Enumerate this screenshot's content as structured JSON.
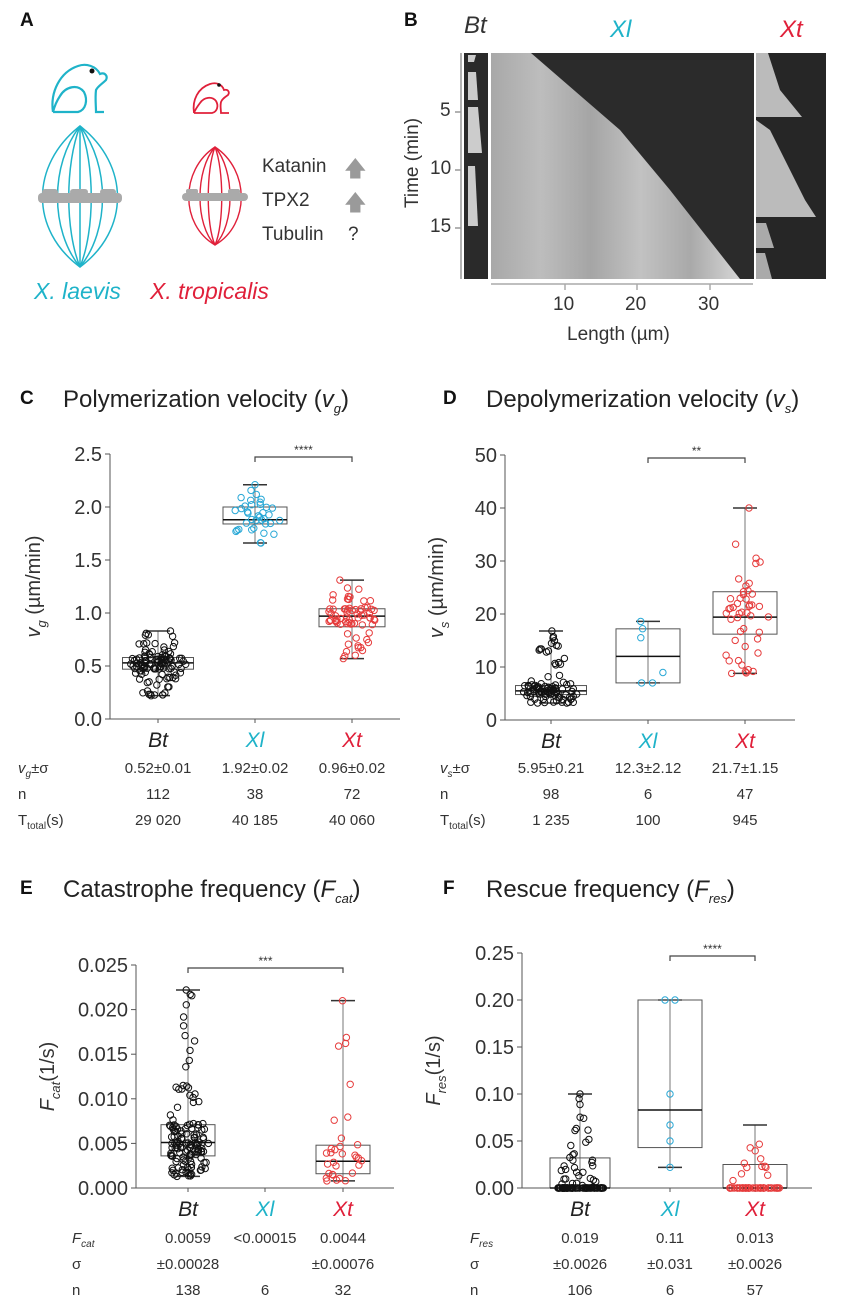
{
  "colors": {
    "Bt": "#111111",
    "Xl": "#29a8d6",
    "Xt": "#e63c3c",
    "Xl_text": "#1fb3c9",
    "Xt_text": "#e0203a",
    "arrow": "#9a9a9a"
  },
  "panelA": {
    "letter": "A",
    "species": [
      {
        "label": "X. laevis",
        "color_key": "Xl_text"
      },
      {
        "label": "X. tropicalis",
        "color_key": "Xt_text"
      }
    ],
    "factors": [
      {
        "name": "Katanin",
        "indicator": "up-arrow"
      },
      {
        "name": "TPX2",
        "indicator": "up-arrow"
      },
      {
        "name": "Tubulin",
        "indicator": "?"
      }
    ]
  },
  "panelB": {
    "letter": "B",
    "kymographs": [
      {
        "label": "Bt"
      },
      {
        "label": "Xl"
      },
      {
        "label": "Xt"
      }
    ],
    "y_axis": {
      "label": "Time (min)",
      "ticks": [
        "5",
        "10",
        "15"
      ]
    },
    "x_axis": {
      "label": "Length (µm)",
      "ticks": [
        "10",
        "20",
        "30"
      ]
    }
  },
  "chart_data": [
    {
      "id": "C",
      "type": "box",
      "letter": "C",
      "title": "Polymerization velocity (v",
      "title_sub": "g",
      "ylabel": "v",
      "ylabel_sub": "g",
      "ylabel_rest": " (µm/min)",
      "ylim": [
        0,
        2.5
      ],
      "yticks": [
        "0.0",
        "0.5",
        "1.0",
        "1.5",
        "2.0",
        "2.5"
      ],
      "categories": [
        "Bt",
        "Xl",
        "Xt"
      ],
      "boxes": [
        {
          "min": 0.22,
          "q1": 0.47,
          "median": 0.53,
          "q3": 0.58,
          "max": 0.83
        },
        {
          "min": 1.66,
          "q1": 1.84,
          "median": 1.88,
          "q3": 2.0,
          "max": 2.21
        },
        {
          "min": 0.57,
          "q1": 0.87,
          "median": 0.97,
          "q3": 1.04,
          "max": 1.31
        }
      ],
      "n_points": [
        112,
        38,
        72
      ],
      "significance": {
        "from": "Xl",
        "to": "Xt",
        "label": "****"
      },
      "table": {
        "rows": [
          {
            "label": "v",
            "label_sub": "g",
            "label_rest": "±σ",
            "values": [
              "0.52±0.01",
              "1.92±0.02",
              "0.96±0.02"
            ]
          },
          {
            "label": "n",
            "values": [
              "112",
              "38",
              "72"
            ]
          },
          {
            "label": "T",
            "label_sub": "total",
            "label_rest": "(s)",
            "values": [
              "29 020",
              "40 185",
              "40 060"
            ]
          }
        ]
      }
    },
    {
      "id": "D",
      "type": "box",
      "letter": "D",
      "title": "Depolymerization velocity (v",
      "title_sub": "s",
      "ylabel": "v",
      "ylabel_sub": "s",
      "ylabel_rest": " (µm/min)",
      "ylim": [
        0,
        50
      ],
      "yticks": [
        "0",
        "10",
        "20",
        "30",
        "40",
        "50"
      ],
      "categories": [
        "Bt",
        "Xl",
        "Xt"
      ],
      "boxes": [
        {
          "min": 3.2,
          "q1": 4.8,
          "median": 5.5,
          "q3": 6.5,
          "max": 16.8
        },
        {
          "min": 7.0,
          "q1": 7.0,
          "median": 12.0,
          "q3": 17.2,
          "max": 18.6
        },
        {
          "min": 8.8,
          "q1": 16.2,
          "median": 19.4,
          "q3": 24.2,
          "max": 40.0
        }
      ],
      "n_points": [
        98,
        6,
        47
      ],
      "significance": {
        "from": "Xl",
        "to": "Xt",
        "label": "**"
      },
      "table": {
        "rows": [
          {
            "label": "v",
            "label_sub": "s",
            "label_rest": "±σ",
            "values": [
              "5.95±0.21",
              "12.3±2.12",
              "21.7±1.15"
            ]
          },
          {
            "label": "n",
            "values": [
              "98",
              "6",
              "47"
            ]
          },
          {
            "label": "T",
            "label_sub": "total",
            "label_rest": "(s)",
            "values": [
              "1 235",
              "100",
              "945"
            ]
          }
        ]
      }
    },
    {
      "id": "E",
      "type": "box",
      "letter": "E",
      "title": "Catastrophe frequency (F",
      "title_sub": "cat",
      "ylabel": "F",
      "ylabel_sub": "cat",
      "ylabel_rest": "(1/s)",
      "ylim": [
        0,
        0.025
      ],
      "yticks": [
        "0.000",
        "0.005",
        "0.010",
        "0.015",
        "0.020",
        "0.025"
      ],
      "categories": [
        "Bt",
        "Xl",
        "Xt"
      ],
      "boxes": [
        {
          "min": 0.0013,
          "q1": 0.0036,
          "median": 0.0051,
          "q3": 0.0071,
          "max": 0.0222
        },
        null,
        {
          "min": 0.0008,
          "q1": 0.0016,
          "median": 0.003,
          "q3": 0.0048,
          "max": 0.021
        }
      ],
      "n_points": [
        138,
        0,
        32
      ],
      "significance": {
        "from": "Bt",
        "to": "Xt",
        "label": "***"
      },
      "table": {
        "rows": [
          {
            "label": "F",
            "label_sub": "cat",
            "label_rest": "",
            "values": [
              "0.0059",
              "<0.00015",
              "0.0044"
            ]
          },
          {
            "label": "σ",
            "values": [
              "±0.00028",
              "",
              "±0.00076"
            ]
          },
          {
            "label": "n",
            "values": [
              "138",
              "6",
              "32"
            ]
          }
        ]
      }
    },
    {
      "id": "F",
      "type": "box",
      "letter": "F",
      "title": "Rescue frequency (F",
      "title_sub": "res",
      "ylabel": "F",
      "ylabel_sub": "res",
      "ylabel_rest": "(1/s)",
      "ylim": [
        0,
        0.25
      ],
      "yticks": [
        "0.00",
        "0.05",
        "0.10",
        "0.15",
        "0.20",
        "0.25"
      ],
      "categories": [
        "Bt",
        "Xl",
        "Xt"
      ],
      "boxes": [
        {
          "min": 0.0,
          "q1": 0.0,
          "median": 0.0,
          "q3": 0.032,
          "max": 0.1
        },
        {
          "min": 0.022,
          "q1": 0.043,
          "median": 0.083,
          "q3": 0.2,
          "max": 0.2
        },
        {
          "min": 0.0,
          "q1": 0.0,
          "median": 0.0,
          "q3": 0.025,
          "max": 0.067
        }
      ],
      "points_xl": [
        0.2,
        0.2,
        0.1,
        0.067,
        0.05,
        0.022
      ],
      "n_points": [
        106,
        6,
        57
      ],
      "significance": {
        "from": "Xl",
        "to": "Xt",
        "label": "****"
      },
      "table": {
        "rows": [
          {
            "label": "F",
            "label_sub": "res",
            "label_rest": "",
            "values": [
              "0.019",
              "0.11",
              "0.013"
            ]
          },
          {
            "label": "σ",
            "values": [
              "±0.0026",
              "±0.031",
              "±0.0026"
            ]
          },
          {
            "label": "n",
            "values": [
              "106",
              "6",
              "57"
            ]
          }
        ]
      }
    }
  ]
}
